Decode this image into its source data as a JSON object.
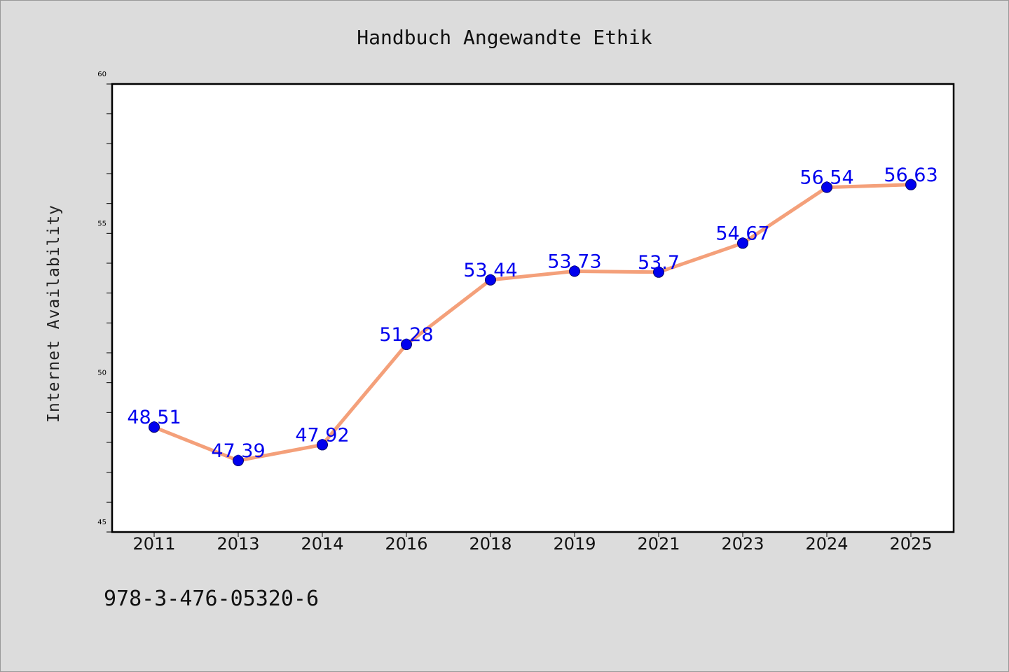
{
  "chart_data": {
    "type": "line",
    "title": "Handbuch Angewandte Ethik",
    "xlabel": "",
    "ylabel": "Internet Availability",
    "categories": [
      "2011",
      "2013",
      "2014",
      "2016",
      "2018",
      "2019",
      "2021",
      "2023",
      "2024",
      "2025"
    ],
    "series": [
      {
        "values": [
          48.51,
          47.39,
          47.92,
          51.28,
          53.44,
          53.73,
          53.7,
          54.67,
          56.54,
          56.63
        ],
        "labels": [
          "48.51",
          "47.39",
          "47.92",
          "51.28",
          "53.44",
          "53.73",
          "53.7",
          "54.67",
          "56.54",
          "56.63"
        ],
        "line_color": "#f4a07a",
        "marker_color": "#0000ee",
        "label_color": "#0000ee"
      }
    ],
    "ylim": [
      45,
      60
    ],
    "yticks": [
      "45",
      "50",
      "55",
      "60"
    ],
    "grid": false,
    "legend": "none",
    "footer": "978-3-476-05320-6"
  }
}
